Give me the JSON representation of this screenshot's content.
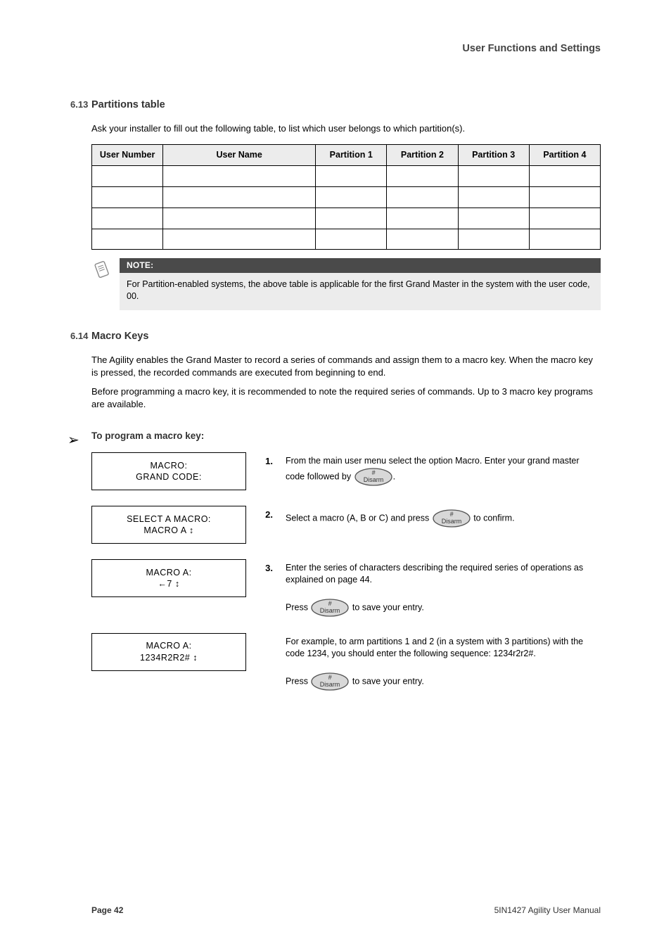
{
  "colors": {
    "background": "#ffffff",
    "grey_fill": "#ececec",
    "dark_bar": "#4a4a4a",
    "text": "#000000",
    "muted": "#444444"
  },
  "header": {
    "right": "User Functions and Settings"
  },
  "partition_section": {
    "number": "6.13",
    "title": "Partitions table",
    "intro": "Ask your installer to fill out the following table, to list which user belongs to which partition(s)."
  },
  "table": {
    "headers": [
      "User Number",
      "User Name",
      "Partition 1",
      "Partition 2",
      "Partition 3",
      "Partition 4"
    ],
    "col_widths": [
      "14%",
      "30%",
      "14%",
      "14%",
      "14%",
      "14%"
    ],
    "rows": 4
  },
  "note": {
    "label": "NOTE:",
    "text": "For Partition-enabled systems, the above table is applicable for the first Grand Master in the system with the user code, 00."
  },
  "macro_section": {
    "number": "6.14",
    "title": "Macro Keys",
    "para1": "The Agility enables the Grand Master to record a series of commands and assign them to a macro key. When the macro key is pressed, the recorded commands are executed from beginning to end.",
    "para2": "Before programming a macro key, it is recommended to note the required series of commands. Up to 3 macro key programs are available.",
    "steps_title": "To program a macro key:",
    "steps": [
      {
        "num": "1.",
        "lcd": "MACRO:\nGRAND CODE:",
        "desc_before": "From the main user menu select the option Macro. Enter your grand master code followed by ",
        "desc_after": ".",
        "show_button": true
      },
      {
        "num": "2.",
        "lcd": "SELECT A MACRO:\nMACRO A        ↕",
        "desc_before": "Select a macro (A, B or C) and press ",
        "desc_after": " to confirm.",
        "show_button": true
      },
      {
        "num": "3.",
        "lcd": "MACRO A:\n  ←7            ↕",
        "desc_before": "Enter the series of characters describing the required series of operations as explained on page 44.\n\nPress ",
        "desc_after": " to save your entry.",
        "show_button": true
      },
      {
        "num": "",
        "lcd": "MACRO A:\n1234r2r2#       ↕",
        "desc_before": "For example, to arm partitions 1 and 2 (in a system with 3 partitions) with the code 1234, you should enter the following sequence: 1234r2r2#.\n\nPress ",
        "desc_after": " to save your entry.",
        "show_button": true
      }
    ]
  },
  "footer": {
    "page": "Page 42",
    "manual": "5IN1427  Agility User Manual"
  },
  "key_button": {
    "top": "#",
    "bottom": "Disarm",
    "fill": "#d8d8d8",
    "stroke": "#555555",
    "text_color": "#333333"
  }
}
